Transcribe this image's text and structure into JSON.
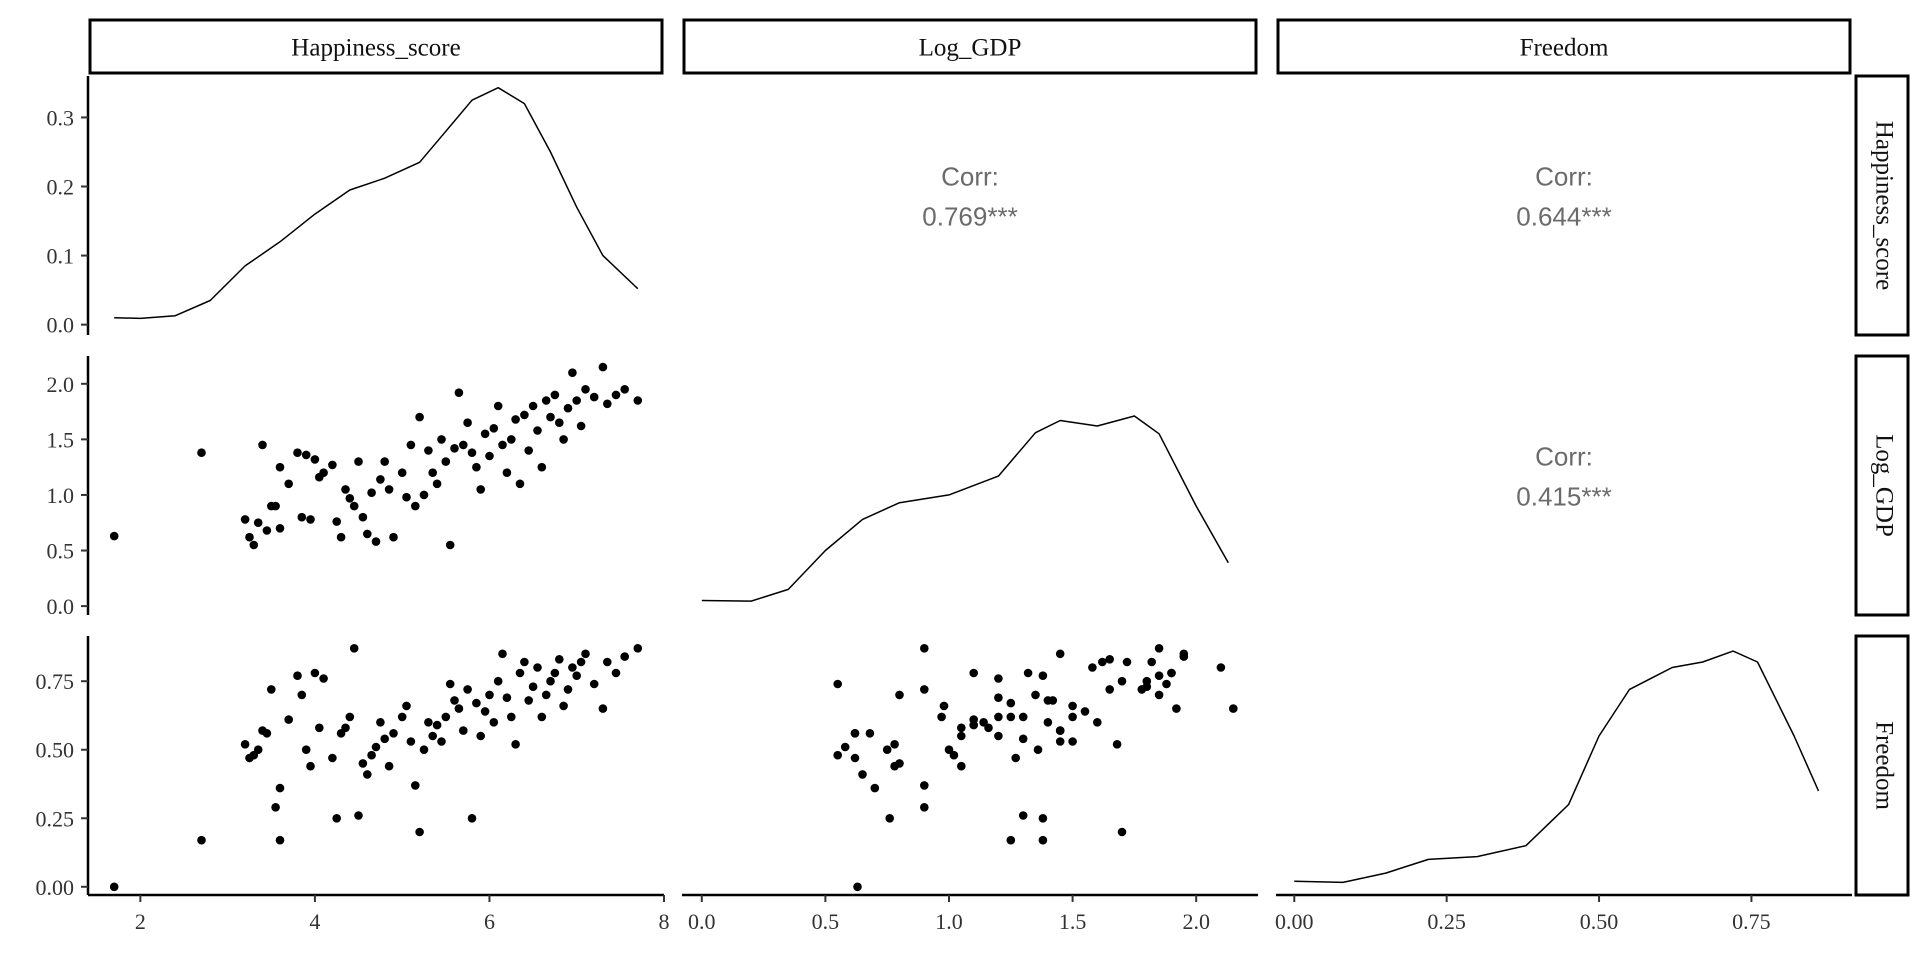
{
  "chart_data": {
    "type": "scatter",
    "title": "",
    "variables": [
      "Happiness_score",
      "Log_GDP",
      "Freedom"
    ],
    "axes": {
      "Happiness_score": {
        "range": [
          1.4,
          8.0
        ],
        "ticks": [
          2,
          4,
          6,
          8
        ]
      },
      "Log_GDP": {
        "range": [
          -0.08,
          2.25
        ],
        "ticks": [
          0.0,
          0.5,
          1.0,
          1.5,
          2.0
        ]
      },
      "Freedom": {
        "range": [
          -0.03,
          0.915
        ],
        "ticks": [
          0.0,
          0.25,
          0.5,
          0.75
        ]
      }
    },
    "density_axis": {
      "range": [
        -0.015,
        0.36
      ],
      "ticks": [
        0.0,
        0.1,
        0.2,
        0.3
      ]
    },
    "tick_labels": {
      "Happiness_score": [
        "2",
        "4",
        "6",
        "8"
      ],
      "Log_GDP": [
        "0.0",
        "0.5",
        "1.0",
        "1.5",
        "2.0"
      ],
      "Freedom": [
        "0.00",
        "0.25",
        "0.50",
        "0.75"
      ],
      "density": [
        "0.0",
        "0.1",
        "0.2",
        "0.3"
      ]
    },
    "densities": {
      "Happiness_score": [
        [
          1.7,
          0.01
        ],
        [
          2.0,
          0.009
        ],
        [
          2.4,
          0.013
        ],
        [
          2.8,
          0.035
        ],
        [
          3.2,
          0.085
        ],
        [
          3.6,
          0.12
        ],
        [
          4.0,
          0.16
        ],
        [
          4.4,
          0.195
        ],
        [
          4.8,
          0.212
        ],
        [
          5.2,
          0.235
        ],
        [
          5.5,
          0.28
        ],
        [
          5.8,
          0.325
        ],
        [
          6.1,
          0.343
        ],
        [
          6.4,
          0.32
        ],
        [
          6.7,
          0.25
        ],
        [
          7.0,
          0.17
        ],
        [
          7.3,
          0.1
        ],
        [
          7.7,
          0.052
        ]
      ],
      "Log_GDP": [
        [
          0.0,
          0.05
        ],
        [
          0.2,
          0.045
        ],
        [
          0.35,
          0.15
        ],
        [
          0.5,
          0.5
        ],
        [
          0.65,
          0.78
        ],
        [
          0.8,
          0.93
        ],
        [
          1.0,
          1.0
        ],
        [
          1.2,
          1.17
        ],
        [
          1.35,
          1.56
        ],
        [
          1.45,
          1.67
        ],
        [
          1.6,
          1.62
        ],
        [
          1.75,
          1.71
        ],
        [
          1.85,
          1.55
        ],
        [
          2.0,
          0.9
        ],
        [
          2.13,
          0.39
        ]
      ],
      "Freedom": [
        [
          0.0,
          0.02
        ],
        [
          0.08,
          0.016
        ],
        [
          0.15,
          0.05
        ],
        [
          0.22,
          0.1
        ],
        [
          0.3,
          0.11
        ],
        [
          0.38,
          0.15
        ],
        [
          0.45,
          0.3
        ],
        [
          0.5,
          0.55
        ],
        [
          0.55,
          0.72
        ],
        [
          0.62,
          0.8
        ],
        [
          0.67,
          0.82
        ],
        [
          0.72,
          0.86
        ],
        [
          0.76,
          0.82
        ],
        [
          0.82,
          0.55
        ],
        [
          0.86,
          0.35
        ]
      ]
    },
    "correlations": [
      {
        "pair": [
          "Happiness_score",
          "Log_GDP"
        ],
        "label": "Corr:",
        "value": "0.769***"
      },
      {
        "pair": [
          "Happiness_score",
          "Freedom"
        ],
        "label": "Corr:",
        "value": "0.644***"
      },
      {
        "pair": [
          "Log_GDP",
          "Freedom"
        ],
        "label": "Corr:",
        "value": "0.415***"
      }
    ],
    "points": [
      [
        1.7,
        0.63,
        0.0
      ],
      [
        2.7,
        1.38,
        0.17
      ],
      [
        3.2,
        0.78,
        0.52
      ],
      [
        3.25,
        0.62,
        0.47
      ],
      [
        3.3,
        0.55,
        0.48
      ],
      [
        3.35,
        0.75,
        0.5
      ],
      [
        3.4,
        1.45,
        0.57
      ],
      [
        3.45,
        0.68,
        0.56
      ],
      [
        3.5,
        0.9,
        0.72
      ],
      [
        3.55,
        0.9,
        0.29
      ],
      [
        3.6,
        1.25,
        0.17
      ],
      [
        3.6,
        0.7,
        0.36
      ],
      [
        3.7,
        1.1,
        0.61
      ],
      [
        3.8,
        1.38,
        0.77
      ],
      [
        3.85,
        0.8,
        0.7
      ],
      [
        3.9,
        1.36,
        0.5
      ],
      [
        3.95,
        0.78,
        0.44
      ],
      [
        4.0,
        1.32,
        0.78
      ],
      [
        4.05,
        1.16,
        0.58
      ],
      [
        4.1,
        1.2,
        0.76
      ],
      [
        4.2,
        1.27,
        0.47
      ],
      [
        4.25,
        0.76,
        0.25
      ],
      [
        4.3,
        0.62,
        0.56
      ],
      [
        4.35,
        1.05,
        0.58
      ],
      [
        4.4,
        0.97,
        0.62
      ],
      [
        4.45,
        0.9,
        0.87
      ],
      [
        4.5,
        1.3,
        0.26
      ],
      [
        4.55,
        0.8,
        0.45
      ],
      [
        4.6,
        0.65,
        0.41
      ],
      [
        4.65,
        1.02,
        0.48
      ],
      [
        4.7,
        0.58,
        0.51
      ],
      [
        4.75,
        1.14,
        0.6
      ],
      [
        4.8,
        1.3,
        0.54
      ],
      [
        4.85,
        1.05,
        0.44
      ],
      [
        4.9,
        0.62,
        0.56
      ],
      [
        5.0,
        1.2,
        0.62
      ],
      [
        5.05,
        0.98,
        0.66
      ],
      [
        5.1,
        1.45,
        0.53
      ],
      [
        5.15,
        0.9,
        0.37
      ],
      [
        5.2,
        1.7,
        0.2
      ],
      [
        5.25,
        1.0,
        0.5
      ],
      [
        5.3,
        1.4,
        0.6
      ],
      [
        5.35,
        1.2,
        0.55
      ],
      [
        5.4,
        1.1,
        0.59
      ],
      [
        5.45,
        1.5,
        0.53
      ],
      [
        5.5,
        1.3,
        0.62
      ],
      [
        5.55,
        0.55,
        0.74
      ],
      [
        5.6,
        1.42,
        0.68
      ],
      [
        5.65,
        1.92,
        0.65
      ],
      [
        5.7,
        1.45,
        0.57
      ],
      [
        5.75,
        1.65,
        0.72
      ],
      [
        5.8,
        1.38,
        0.25
      ],
      [
        5.85,
        1.25,
        0.67
      ],
      [
        5.9,
        1.05,
        0.55
      ],
      [
        5.95,
        1.55,
        0.64
      ],
      [
        6.0,
        1.35,
        0.7
      ],
      [
        6.05,
        1.6,
        0.6
      ],
      [
        6.1,
        1.8,
        0.75
      ],
      [
        6.15,
        1.45,
        0.85
      ],
      [
        6.2,
        1.2,
        0.69
      ],
      [
        6.25,
        1.5,
        0.62
      ],
      [
        6.3,
        1.68,
        0.52
      ],
      [
        6.35,
        1.1,
        0.78
      ],
      [
        6.4,
        1.72,
        0.82
      ],
      [
        6.45,
        1.4,
        0.68
      ],
      [
        6.5,
        1.8,
        0.73
      ],
      [
        6.55,
        1.58,
        0.8
      ],
      [
        6.6,
        1.25,
        0.62
      ],
      [
        6.65,
        1.85,
        0.7
      ],
      [
        6.7,
        1.7,
        0.75
      ],
      [
        6.75,
        1.9,
        0.78
      ],
      [
        6.8,
        1.65,
        0.83
      ],
      [
        6.85,
        1.5,
        0.66
      ],
      [
        6.9,
        1.78,
        0.72
      ],
      [
        6.95,
        2.1,
        0.8
      ],
      [
        7.0,
        1.85,
        0.77
      ],
      [
        7.05,
        1.62,
        0.82
      ],
      [
        7.1,
        1.95,
        0.85
      ],
      [
        7.2,
        1.88,
        0.74
      ],
      [
        7.3,
        2.15,
        0.65
      ],
      [
        7.35,
        1.82,
        0.82
      ],
      [
        7.45,
        1.9,
        0.78
      ],
      [
        7.55,
        1.95,
        0.84
      ],
      [
        7.7,
        1.85,
        0.87
      ]
    ]
  }
}
